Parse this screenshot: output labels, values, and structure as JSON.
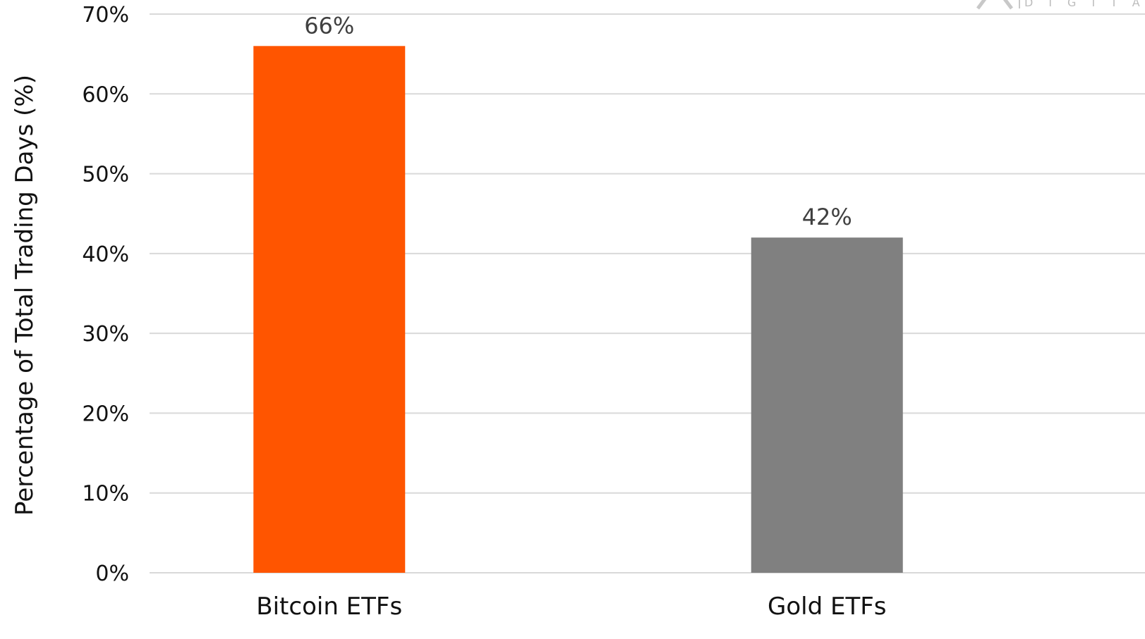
{
  "chart_data": {
    "type": "bar",
    "categories": [
      "Bitcoin ETFs",
      "Gold ETFs"
    ],
    "values": [
      66,
      42
    ],
    "data_labels": [
      "66%",
      "42%"
    ],
    "ylabel": "Percentage of Total Trading Days (%)",
    "xlabel": "",
    "title": "",
    "ylim": [
      0,
      70
    ],
    "y_ticks": [
      0,
      10,
      20,
      30,
      40,
      50,
      60,
      70
    ],
    "y_tick_labels": [
      "0%",
      "10%",
      "20%",
      "30%",
      "40%",
      "50%",
      "60%",
      "70%"
    ],
    "grid": true,
    "legend": "none",
    "colors": {
      "Bitcoin ETFs": "#ff5500",
      "Gold ETFs": "#808080"
    }
  },
  "watermark": {
    "text": "DIGITAL"
  }
}
